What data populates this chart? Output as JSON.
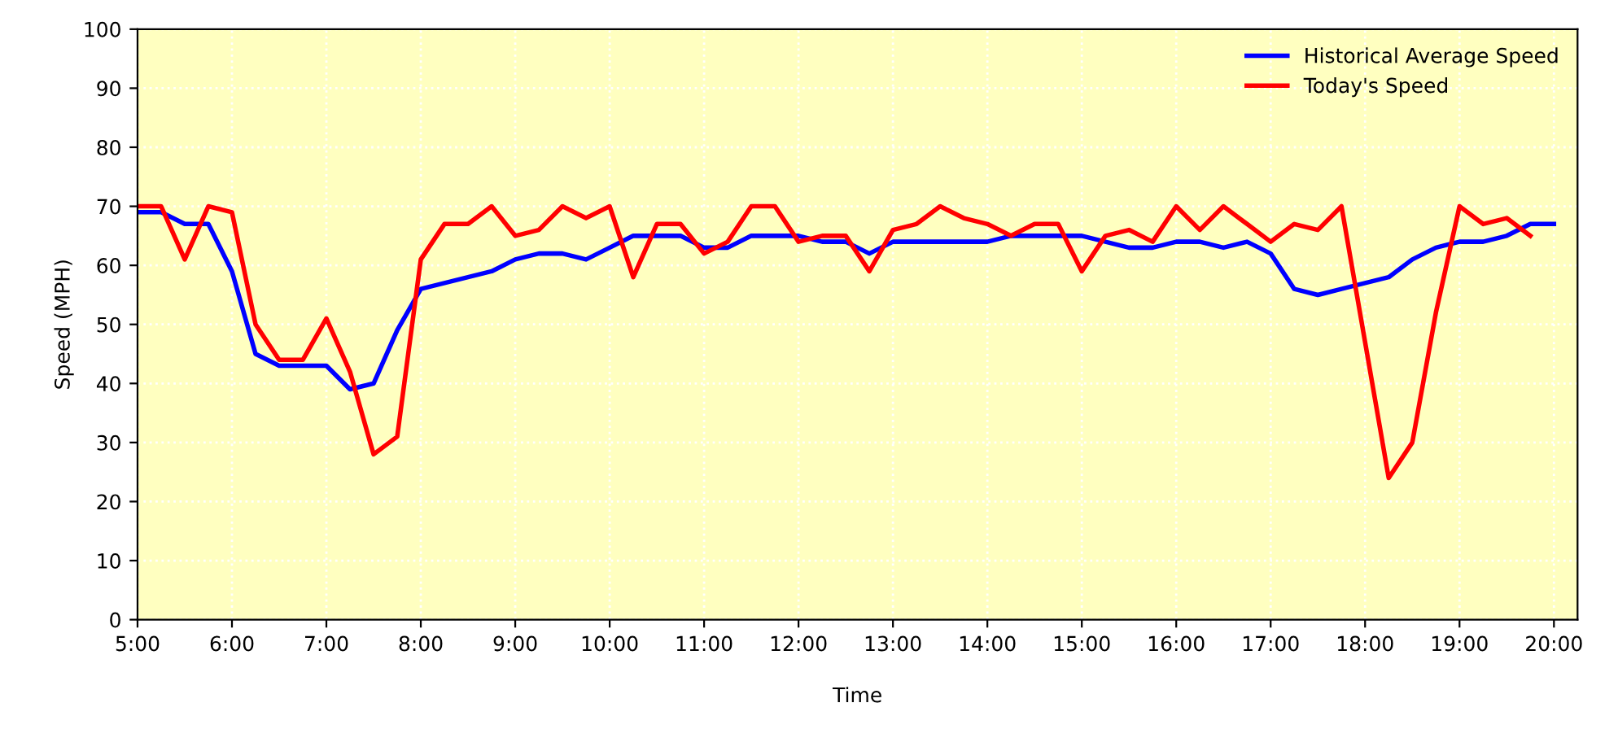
{
  "chart_data": {
    "type": "line",
    "xlabel": "Time",
    "ylabel": "Speed (MPH)",
    "xlim": [
      5,
      20.25
    ],
    "ylim": [
      0,
      100
    ],
    "xticks": [
      {
        "value": 5,
        "label": "5:00"
      },
      {
        "value": 6,
        "label": "6:00"
      },
      {
        "value": 7,
        "label": "7:00"
      },
      {
        "value": 8,
        "label": "8:00"
      },
      {
        "value": 9,
        "label": "9:00"
      },
      {
        "value": 10,
        "label": "10:00"
      },
      {
        "value": 11,
        "label": "11:00"
      },
      {
        "value": 12,
        "label": "12:00"
      },
      {
        "value": 13,
        "label": "13:00"
      },
      {
        "value": 14,
        "label": "14:00"
      },
      {
        "value": 15,
        "label": "15:00"
      },
      {
        "value": 16,
        "label": "16:00"
      },
      {
        "value": 17,
        "label": "17:00"
      },
      {
        "value": 18,
        "label": "18:00"
      },
      {
        "value": 19,
        "label": "19:00"
      },
      {
        "value": 20,
        "label": "20:00"
      }
    ],
    "yticks": [
      0,
      10,
      20,
      30,
      40,
      50,
      60,
      70,
      80,
      90,
      100
    ],
    "grid": true,
    "legend": "top right",
    "line_style": "solid",
    "series": [
      {
        "name": "Historical Average Speed",
        "color": "#0000ff",
        "x": [
          5,
          5.25,
          5.5,
          5.75,
          6,
          6.25,
          6.5,
          6.75,
          7,
          7.25,
          7.5,
          7.75,
          8,
          8.25,
          8.5,
          8.75,
          9,
          9.25,
          9.5,
          9.75,
          10,
          10.25,
          10.5,
          10.75,
          11,
          11.25,
          11.5,
          11.75,
          12,
          12.25,
          12.5,
          12.75,
          13,
          13.25,
          13.5,
          13.75,
          14,
          14.25,
          14.5,
          14.75,
          15,
          15.25,
          15.5,
          15.75,
          16,
          16.25,
          16.5,
          16.75,
          17,
          17.25,
          17.5,
          17.75,
          18,
          18.25,
          18.5,
          18.75,
          19,
          19.25,
          19.5,
          19.75,
          20
        ],
        "values": [
          69,
          69,
          67,
          67,
          59,
          45,
          43,
          43,
          43,
          39,
          40,
          49,
          56,
          57,
          58,
          59,
          61,
          62,
          62,
          61,
          63,
          65,
          65,
          65,
          63,
          63,
          65,
          65,
          65,
          64,
          64,
          62,
          64,
          64,
          64,
          64,
          64,
          65,
          65,
          65,
          65,
          64,
          63,
          63,
          64,
          64,
          63,
          64,
          62,
          56,
          55,
          56,
          57,
          58,
          61,
          63,
          64,
          64,
          65,
          67,
          67
        ]
      },
      {
        "name": "Today's Speed",
        "color": "#ff0000",
        "x": [
          5,
          5.25,
          5.5,
          5.75,
          6,
          6.25,
          6.5,
          6.75,
          7,
          7.25,
          7.5,
          7.75,
          8,
          8.25,
          8.5,
          8.75,
          9,
          9.25,
          9.5,
          9.75,
          10,
          10.25,
          10.5,
          10.75,
          11,
          11.25,
          11.5,
          11.75,
          12,
          12.25,
          12.5,
          12.75,
          13,
          13.25,
          13.5,
          13.75,
          14,
          14.25,
          14.5,
          14.75,
          15,
          15.25,
          15.5,
          15.75,
          16,
          16.25,
          16.5,
          16.75,
          17,
          17.25,
          17.5,
          17.75,
          18.25,
          18.5,
          18.75,
          19,
          19.25,
          19.5,
          19.75
        ],
        "values": [
          70,
          70,
          61,
          70,
          69,
          50,
          44,
          44,
          51,
          42,
          28,
          31,
          61,
          67,
          67,
          70,
          65,
          66,
          70,
          68,
          70,
          58,
          67,
          67,
          62,
          64,
          70,
          70,
          64,
          65,
          65,
          59,
          66,
          67,
          70,
          68,
          67,
          65,
          67,
          67,
          59,
          65,
          66,
          64,
          70,
          66,
          70,
          67,
          64,
          67,
          66,
          70,
          24,
          30,
          52,
          70,
          67,
          68,
          65
        ]
      }
    ]
  }
}
